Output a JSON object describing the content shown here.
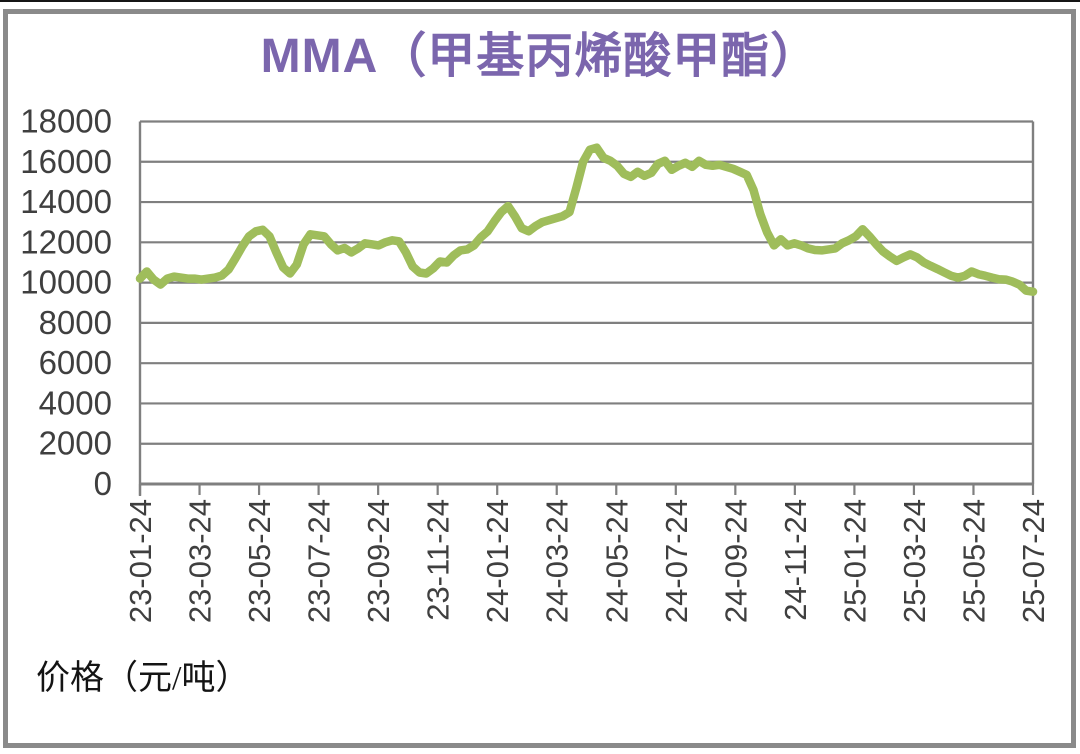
{
  "title": "MMA（甲基丙烯酸甲酯）",
  "footer_label": "价格（元/吨）",
  "colors": {
    "title": "#7b66ad",
    "line": "#9fbd5b",
    "grid": "#7f7f7f",
    "axis_label": "#3f3f3f",
    "frame": "#8a8a8a"
  },
  "chart_data": {
    "type": "line",
    "title": "MMA（甲基丙烯酸甲酯）",
    "ylabel": "价格（元/吨）",
    "ylim": [
      0,
      18000
    ],
    "ytick_step": 2000,
    "yticks": [
      18000,
      16000,
      14000,
      12000,
      10000,
      8000,
      6000,
      4000,
      2000,
      0
    ],
    "xticklabels": [
      "23-01-24",
      "23-03-24",
      "23-05-24",
      "23-07-24",
      "23-09-24",
      "23-11-24",
      "24-01-24",
      "24-03-24",
      "24-05-24",
      "24-07-24",
      "24-09-24",
      "24-11-24",
      "25-01-24",
      "25-03-24",
      "25-05-24",
      "25-07-24"
    ],
    "grid": "horizontal",
    "legend": "none",
    "series": [
      {
        "values": [
          10200,
          10550,
          10150,
          9900,
          10200,
          10300,
          10250,
          10200,
          10200,
          10150,
          10200,
          10250,
          10350,
          10650,
          11200,
          11800,
          12300,
          12550,
          12620,
          12300,
          11500,
          10750,
          10450,
          10900,
          11900,
          12400,
          12350,
          12300,
          11900,
          11600,
          11720,
          11500,
          11700,
          11950,
          11900,
          11850,
          12000,
          12100,
          12050,
          11500,
          10800,
          10500,
          10450,
          10700,
          11050,
          11000,
          11350,
          11600,
          11650,
          11850,
          12250,
          12550,
          13050,
          13500,
          13800,
          13300,
          12700,
          12550,
          12800,
          13000,
          13100,
          13200,
          13300,
          13500,
          14700,
          16000,
          16600,
          16700,
          16200,
          16050,
          15800,
          15400,
          15250,
          15500,
          15300,
          15450,
          15900,
          16050,
          15600,
          15800,
          15950,
          15750,
          16050,
          15850,
          15800,
          15850,
          15750,
          15650,
          15500,
          15350,
          14600,
          13400,
          12500,
          11850,
          12150,
          11850,
          11950,
          11850,
          11700,
          11620,
          11600,
          11650,
          11700,
          11950,
          12100,
          12300,
          12650,
          12300,
          11900,
          11550,
          11300,
          11080,
          11250,
          11400,
          11250,
          11000,
          10830,
          10670,
          10500,
          10340,
          10250,
          10340,
          10550,
          10420,
          10340,
          10250,
          10170,
          10150,
          10050,
          9900,
          9600,
          9550
        ]
      }
    ]
  }
}
